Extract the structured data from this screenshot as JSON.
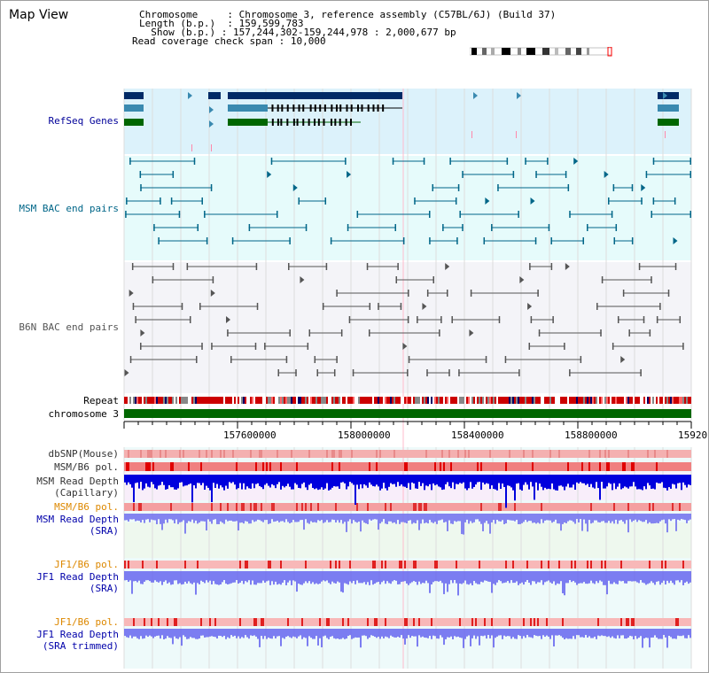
{
  "app": {
    "title": "Map View"
  },
  "info": {
    "chromosome_label": "Chromosome",
    "chromosome_value": "Chromosome 3, reference assembly (C57BL/6J) (Build 37)",
    "length_label": "Length (b.p.)",
    "length_value": "159,599,783",
    "show_label": "Show (b.p.)",
    "show_value": "157,244,302-159,244,978 : 2,000,677 bp",
    "coverage_label": "Read coverage check span",
    "coverage_value": "10,000"
  },
  "tracks": {
    "refseq": "RefSeq Genes",
    "msm_bac": "MSM BAC end pairs",
    "b6n_bac": "B6N BAC end pairs",
    "repeat": "Repeat",
    "chromosome": "chromosome 3",
    "dbsnp": "dbSNP(Mouse)",
    "msm_b6_pol": "MSM/B6 pol.",
    "msm_depth_cap_1": "MSM Read Depth",
    "msm_depth_cap_2": "(Capillary)",
    "msm_b6_pol_2": "MSM/B6 pol.",
    "msm_depth_sra_1": "MSM Read Depth",
    "msm_depth_sra_2": "(SRA)",
    "jf1_b6_pol": "JF1/B6 pol.",
    "jf1_depth_sra_1": "JF1 Read Depth",
    "jf1_depth_sra_2": "(SRA)",
    "jf1_b6_pol_2": "JF1/B6 pol.",
    "jf1_depth_trim_1": "JF1 Read Depth",
    "jf1_depth_trim_2": "(SRA trimmed)"
  },
  "axis": {
    "ticks": [
      "157600000",
      "158000000",
      "158400000",
      "158800000",
      "15920"
    ]
  },
  "colors": {
    "refseq_label": "#000099",
    "msm_label": "#006688",
    "b6n_label": "#555555",
    "pol_orange": "#dd8800",
    "depth_blue": "#0000aa",
    "refseq_bg": "#dcf2fb",
    "msm_bg": "#e6fbfb",
    "b6n_bg": "#f4f4f8",
    "chromosome_green": "#006600"
  }
}
